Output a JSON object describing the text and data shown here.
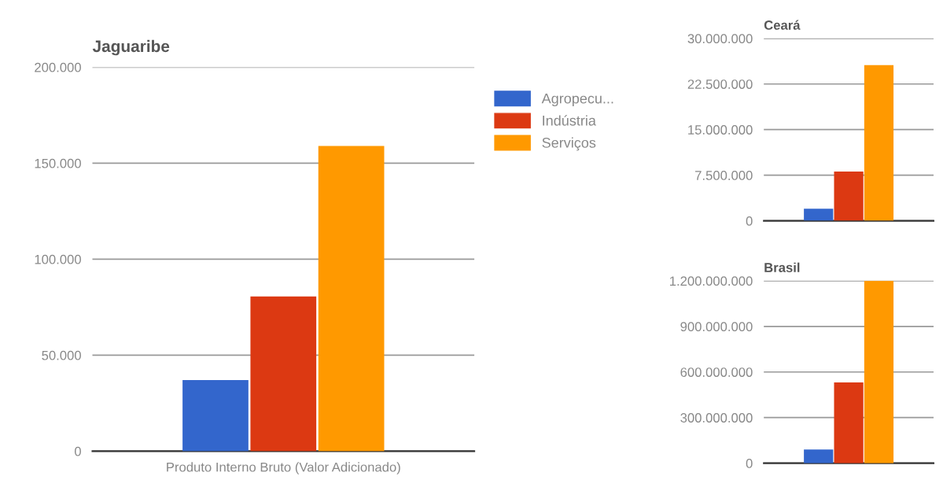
{
  "chart_data": [
    {
      "type": "bar",
      "title": "Jaguaribe",
      "categories": [
        "Produto Interno Bruto (Valor Adicionado)"
      ],
      "series": [
        {
          "name": "Agropecu...",
          "color": "#3366cc",
          "values": [
            37000
          ]
        },
        {
          "name": "Indústria",
          "color": "#dc3912",
          "values": [
            80600
          ]
        },
        {
          "name": "Serviços",
          "color": "#ff9900",
          "values": [
            159000
          ]
        }
      ],
      "ylim": [
        0,
        200000
      ],
      "yticks": [
        0,
        {
          "value": 50000,
          "label": "50.000"
        },
        {
          "value": 100000,
          "label": "100.000"
        },
        {
          "value": 150000,
          "label": "150.000"
        },
        {
          "value": 200000,
          "label": "200.000"
        }
      ],
      "grid": "y",
      "legend": "right"
    },
    {
      "type": "bar",
      "title": "Ceará",
      "categories": [
        null
      ],
      "series": [
        {
          "color": "#3366cc",
          "values": [
            2000000
          ]
        },
        {
          "color": "#dc3912",
          "values": [
            8100000
          ]
        },
        {
          "color": "#ff9900",
          "values": [
            25600000
          ]
        }
      ],
      "ylim": [
        0,
        30000000
      ],
      "yticks": [
        0,
        {
          "value": 7500000,
          "label": "7.500.000"
        },
        {
          "value": 15000000,
          "label": "15.000.000"
        },
        {
          "value": 22500000,
          "label": "22.500.000"
        },
        {
          "value": 30000000,
          "label": "30.000.000"
        }
      ],
      "grid": "y"
    },
    {
      "type": "bar",
      "title": "Brasil",
      "categories": [
        null
      ],
      "series": [
        {
          "color": "#3366cc",
          "values": [
            90000000
          ]
        },
        {
          "color": "#dc3912",
          "values": [
            531000000
          ]
        },
        {
          "color": "#ff9900",
          "values": [
            1200000000
          ]
        }
      ],
      "ylim": [
        0,
        1200000000
      ],
      "yticks": [
        0,
        {
          "value": 300000000,
          "label": "300.000.000"
        },
        {
          "value": 600000000,
          "label": "600.000.000"
        },
        {
          "value": 900000000,
          "label": "900.000.000"
        },
        {
          "value": 1200000000,
          "label": "1.200.000.000"
        }
      ],
      "grid": "y"
    }
  ]
}
